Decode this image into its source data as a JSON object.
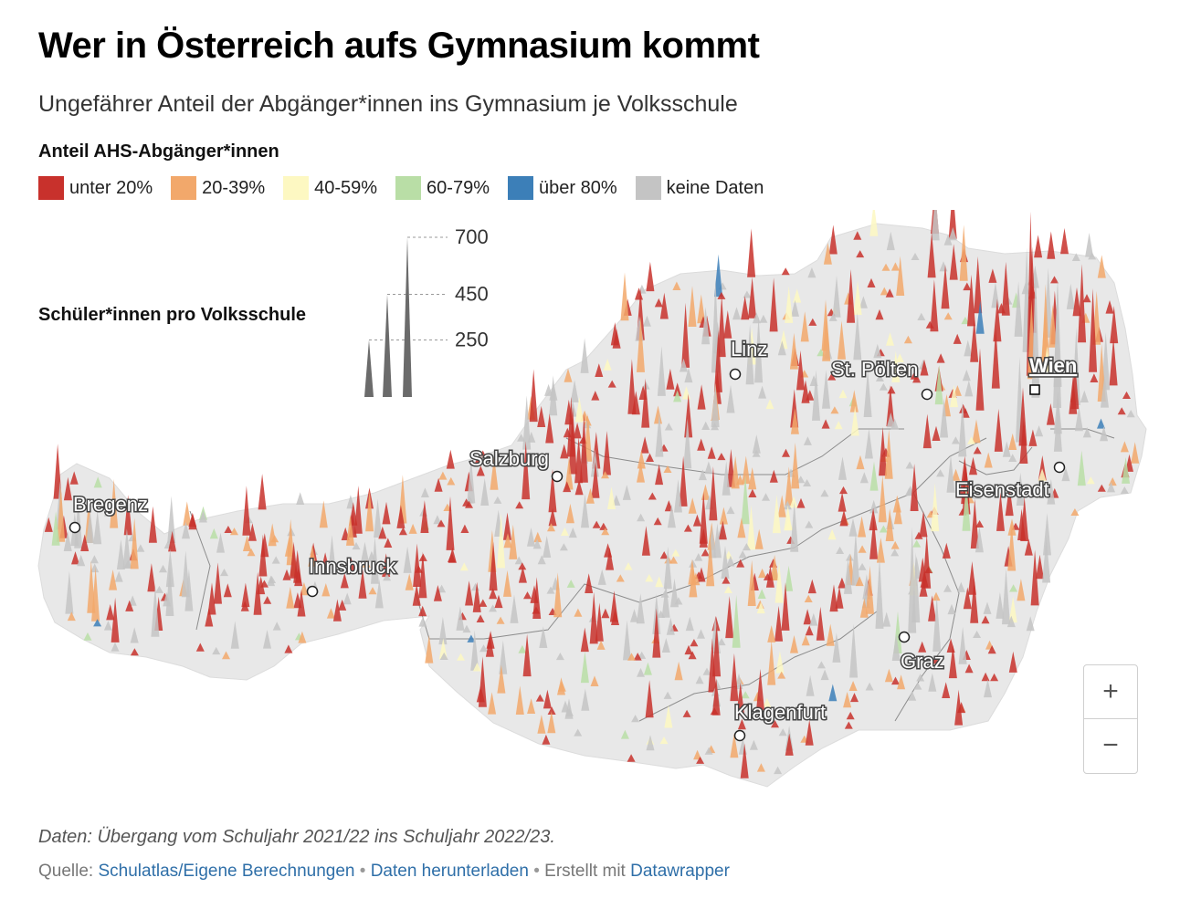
{
  "header": {
    "title": "Wer in Österreich aufs Gymnasium kommt",
    "subtitle": "Ungefährer Anteil der Abgänger*innen ins Gymnasium je Volksschule"
  },
  "legend": {
    "title": "Anteil AHS-Abgänger*innen",
    "items": [
      {
        "label": "unter 20%",
        "color": "#c8312c"
      },
      {
        "label": "20-39%",
        "color": "#f2a86b"
      },
      {
        "label": "40-59%",
        "color": "#fdf8c2"
      },
      {
        "label": "60-79%",
        "color": "#b9dea6"
      },
      {
        "label": "über 80%",
        "color": "#3c7fb8"
      },
      {
        "label": "keine Daten",
        "color": "#c4c4c4"
      }
    ]
  },
  "size_legend": {
    "title": "Schüler*innen pro Volksschule",
    "items": [
      {
        "label": "250",
        "value": 250
      },
      {
        "label": "450",
        "value": 450
      },
      {
        "label": "700",
        "value": 700
      }
    ]
  },
  "map": {
    "land_color": "#e8e8e8",
    "cities": [
      {
        "name": "Bregenz",
        "capital": false
      },
      {
        "name": "Innsbruck",
        "capital": false
      },
      {
        "name": "Salzburg",
        "capital": false
      },
      {
        "name": "Linz",
        "capital": false
      },
      {
        "name": "St. Pölten",
        "capital": false
      },
      {
        "name": "Wien",
        "capital": true
      },
      {
        "name": "Eisenstadt",
        "capital": false
      },
      {
        "name": "Graz",
        "capital": false
      },
      {
        "name": "Klagenfurt",
        "capital": false
      }
    ]
  },
  "zoom": {
    "in": "+",
    "out": "−"
  },
  "footer": {
    "note": "Daten: Übergang vom Schuljahr 2021/22 ins Schuljahr 2022/23.",
    "source_label": "Quelle:",
    "source_link": "Schulatlas/Eigene Berechnungen",
    "separator": "•",
    "download_link": "Daten herunterladen",
    "created_label": "Erstellt mit",
    "created_link": "Datawrapper"
  }
}
